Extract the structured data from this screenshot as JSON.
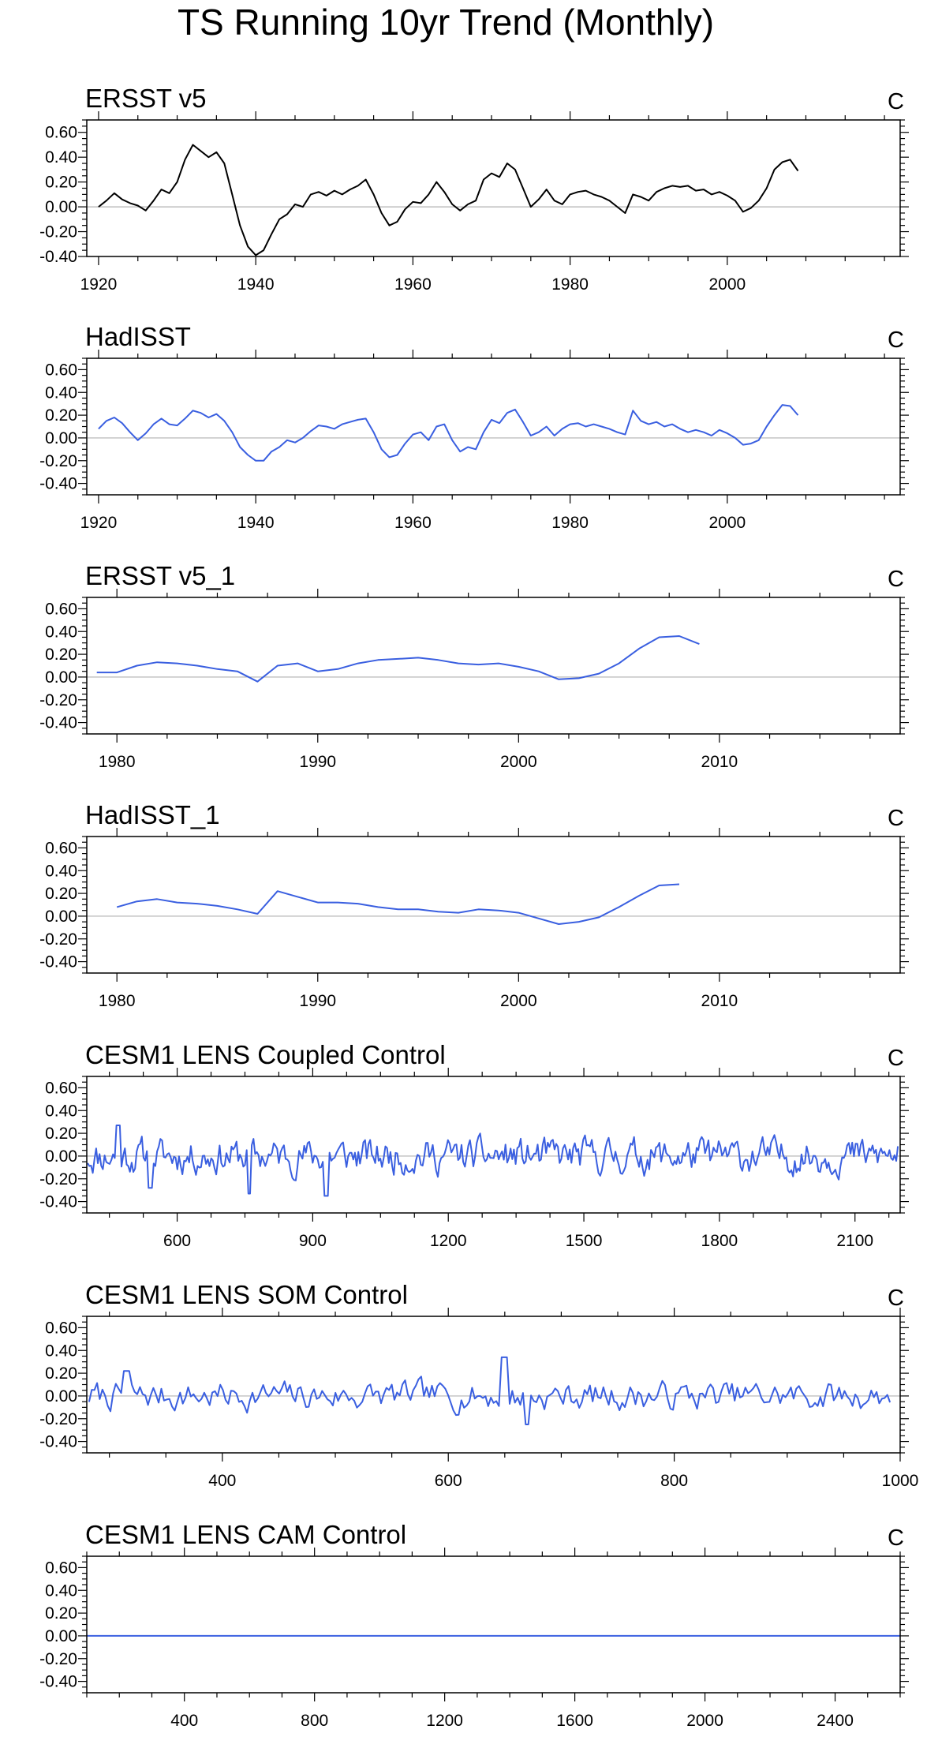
{
  "figure": {
    "title": "TS Running 10yr Trend (Monthly)"
  },
  "chart_data": [
    {
      "type": "line",
      "title": "ERSST v5",
      "units": "C",
      "color": "#000000",
      "xlim": [
        1918.5,
        2022
      ],
      "ylim": [
        -0.4,
        0.7
      ],
      "xticks": [
        1920,
        1940,
        1960,
        1980,
        2000
      ],
      "yticks": [
        -0.4,
        -0.2,
        0.0,
        0.2,
        0.4,
        0.6
      ],
      "ytick_labels": [
        "-0.40",
        "-0.20",
        "0.00",
        "0.20",
        "0.40",
        "0.60"
      ],
      "series": [
        {
          "name": "ERSST v5",
          "x": [
            1920,
            1921,
            1922,
            1923,
            1924,
            1925,
            1926,
            1927,
            1928,
            1929,
            1930,
            1931,
            1932,
            1933,
            1934,
            1935,
            1936,
            1937,
            1938,
            1939,
            1940,
            1941,
            1942,
            1943,
            1944,
            1945,
            1946,
            1947,
            1948,
            1949,
            1950,
            1951,
            1952,
            1953,
            1954,
            1955,
            1956,
            1957,
            1958,
            1959,
            1960,
            1961,
            1962,
            1963,
            1964,
            1965,
            1966,
            1967,
            1968,
            1969,
            1970,
            1971,
            1972,
            1973,
            1974,
            1975,
            1976,
            1977,
            1978,
            1979,
            1980,
            1981,
            1982,
            1983,
            1984,
            1985,
            1986,
            1987,
            1988,
            1989,
            1990,
            1991,
            1992,
            1993,
            1994,
            1995,
            1996,
            1997,
            1998,
            1999,
            2000,
            2001,
            2002,
            2003,
            2004,
            2005,
            2006,
            2007,
            2008,
            2009
          ],
          "values": [
            0.0,
            0.05,
            0.11,
            0.06,
            0.03,
            0.01,
            -0.03,
            0.05,
            0.14,
            0.11,
            0.2,
            0.38,
            0.5,
            0.45,
            0.4,
            0.44,
            0.35,
            0.1,
            -0.15,
            -0.32,
            -0.39,
            -0.35,
            -0.22,
            -0.1,
            -0.06,
            0.02,
            0.0,
            0.1,
            0.12,
            0.09,
            0.13,
            0.1,
            0.14,
            0.17,
            0.22,
            0.1,
            -0.05,
            -0.15,
            -0.12,
            -0.02,
            0.04,
            0.03,
            0.1,
            0.2,
            0.12,
            0.02,
            -0.03,
            0.02,
            0.05,
            0.22,
            0.27,
            0.24,
            0.35,
            0.3,
            0.15,
            0.0,
            0.06,
            0.14,
            0.05,
            0.02,
            0.1,
            0.12,
            0.13,
            0.1,
            0.08,
            0.05,
            0.0,
            -0.05,
            0.1,
            0.08,
            0.05,
            0.12,
            0.15,
            0.17,
            0.16,
            0.17,
            0.13,
            0.14,
            0.1,
            0.12,
            0.09,
            0.05,
            -0.04,
            -0.01,
            0.05,
            0.15,
            0.3,
            0.36,
            0.38,
            0.29
          ]
        }
      ]
    },
    {
      "type": "line",
      "title": "HadISST",
      "units": "C",
      "color": "#3a5fe0",
      "xlim": [
        1918.5,
        2022
      ],
      "ylim": [
        -0.5,
        0.7
      ],
      "xticks": [
        1920,
        1940,
        1960,
        1980,
        2000
      ],
      "yticks": [
        -0.4,
        -0.2,
        0.0,
        0.2,
        0.4,
        0.6
      ],
      "ytick_labels": [
        "-0.40",
        "-0.20",
        "0.00",
        "0.20",
        "0.40",
        "0.60"
      ],
      "series": [
        {
          "name": "HadISST",
          "x": [
            1920,
            1921,
            1922,
            1923,
            1924,
            1925,
            1926,
            1927,
            1928,
            1929,
            1930,
            1931,
            1932,
            1933,
            1934,
            1935,
            1936,
            1937,
            1938,
            1939,
            1940,
            1941,
            1942,
            1943,
            1944,
            1945,
            1946,
            1947,
            1948,
            1949,
            1950,
            1951,
            1952,
            1953,
            1954,
            1955,
            1956,
            1957,
            1958,
            1959,
            1960,
            1961,
            1962,
            1963,
            1964,
            1965,
            1966,
            1967,
            1968,
            1969,
            1970,
            1971,
            1972,
            1973,
            1974,
            1975,
            1976,
            1977,
            1978,
            1979,
            1980,
            1981,
            1982,
            1983,
            1984,
            1985,
            1986,
            1987,
            1988,
            1989,
            1990,
            1991,
            1992,
            1993,
            1994,
            1995,
            1996,
            1997,
            1998,
            1999,
            2000,
            2001,
            2002,
            2003,
            2004,
            2005,
            2006,
            2007,
            2008,
            2009
          ],
          "values": [
            0.08,
            0.15,
            0.18,
            0.13,
            0.05,
            -0.02,
            0.04,
            0.12,
            0.17,
            0.12,
            0.11,
            0.17,
            0.24,
            0.22,
            0.18,
            0.21,
            0.15,
            0.05,
            -0.08,
            -0.15,
            -0.2,
            -0.2,
            -0.12,
            -0.08,
            -0.02,
            -0.04,
            0.0,
            0.06,
            0.11,
            0.1,
            0.08,
            0.12,
            0.14,
            0.16,
            0.17,
            0.05,
            -0.1,
            -0.17,
            -0.15,
            -0.05,
            0.03,
            0.05,
            -0.02,
            0.1,
            0.12,
            -0.02,
            -0.12,
            -0.08,
            -0.1,
            0.05,
            0.16,
            0.13,
            0.22,
            0.25,
            0.14,
            0.02,
            0.05,
            0.1,
            0.02,
            0.08,
            0.12,
            0.13,
            0.1,
            0.12,
            0.1,
            0.08,
            0.05,
            0.03,
            0.24,
            0.15,
            0.12,
            0.14,
            0.1,
            0.12,
            0.08,
            0.05,
            0.07,
            0.05,
            0.02,
            0.07,
            0.04,
            0.0,
            -0.06,
            -0.05,
            -0.02,
            0.1,
            0.2,
            0.29,
            0.28,
            0.2
          ]
        }
      ]
    },
    {
      "type": "line",
      "title": "ERSST v5_1",
      "units": "C",
      "color": "#3a5fe0",
      "xlim": [
        1978.5,
        2019
      ],
      "ylim": [
        -0.5,
        0.7
      ],
      "xticks": [
        1980,
        1990,
        2000,
        2010
      ],
      "yticks": [
        -0.4,
        -0.2,
        0.0,
        0.2,
        0.4,
        0.6
      ],
      "ytick_labels": [
        "-0.40",
        "-0.20",
        "0.00",
        "0.20",
        "0.40",
        "0.60"
      ],
      "series": [
        {
          "name": "ERSST v5_1",
          "x": [
            1979,
            1980,
            1981,
            1982,
            1983,
            1984,
            1985,
            1986,
            1987,
            1988,
            1989,
            1990,
            1991,
            1992,
            1993,
            1994,
            1995,
            1996,
            1997,
            1998,
            1999,
            2000,
            2001,
            2002,
            2003,
            2004,
            2005,
            2006,
            2007,
            2008,
            2009
          ],
          "values": [
            0.04,
            0.04,
            0.1,
            0.13,
            0.12,
            0.1,
            0.07,
            0.05,
            -0.04,
            0.1,
            0.12,
            0.05,
            0.07,
            0.12,
            0.15,
            0.16,
            0.17,
            0.15,
            0.12,
            0.11,
            0.12,
            0.09,
            0.05,
            -0.02,
            -0.01,
            0.03,
            0.12,
            0.25,
            0.35,
            0.36,
            0.29
          ]
        }
      ]
    },
    {
      "type": "line",
      "title": "HadISST_1",
      "units": "C",
      "color": "#3a5fe0",
      "xlim": [
        1978.5,
        2019
      ],
      "ylim": [
        -0.5,
        0.7
      ],
      "xticks": [
        1980,
        1990,
        2000,
        2010
      ],
      "yticks": [
        -0.4,
        -0.2,
        0.0,
        0.2,
        0.4,
        0.6
      ],
      "ytick_labels": [
        "-0.40",
        "-0.20",
        "0.00",
        "0.20",
        "0.40",
        "0.60"
      ],
      "series": [
        {
          "name": "HadISST_1",
          "x": [
            1980,
            1981,
            1982,
            1983,
            1984,
            1985,
            1986,
            1987,
            1988,
            1989,
            1990,
            1991,
            1992,
            1993,
            1994,
            1995,
            1996,
            1997,
            1998,
            1999,
            2000,
            2001,
            2002,
            2003,
            2004,
            2005,
            2006,
            2007,
            2008
          ],
          "values": [
            0.08,
            0.13,
            0.15,
            0.12,
            0.11,
            0.09,
            0.06,
            0.02,
            0.22,
            0.17,
            0.12,
            0.12,
            0.11,
            0.08,
            0.06,
            0.06,
            0.04,
            0.03,
            0.06,
            0.05,
            0.03,
            -0.02,
            -0.07,
            -0.05,
            -0.01,
            0.08,
            0.18,
            0.27,
            0.28
          ]
        }
      ]
    },
    {
      "type": "line",
      "title": "CESM1 LENS Coupled Control",
      "units": "C",
      "color": "#3a5fe0",
      "xlim": [
        400,
        2200
      ],
      "ylim": [
        -0.5,
        0.7
      ],
      "xticks": [
        600,
        900,
        1200,
        1500,
        1800,
        2100
      ],
      "yticks": [
        -0.4,
        -0.2,
        0.0,
        0.2,
        0.4,
        0.6
      ],
      "ytick_labels": [
        "-0.40",
        "-0.20",
        "0.00",
        "0.20",
        "0.40",
        "0.60"
      ],
      "series": [
        {
          "name": "CESM1 LENS Coupled Control",
          "x_start": 402,
          "x_end": 2195,
          "n": 480,
          "amplitude": 0.12,
          "seed": 11,
          "extremes": [
            [
              540,
              -0.28
            ],
            [
              930,
              -0.35
            ],
            [
              760,
              -0.33
            ],
            [
              470,
              0.27
            ]
          ]
        }
      ]
    },
    {
      "type": "line",
      "title": "CESM1 LENS SOM Control",
      "units": "C",
      "color": "#3a5fe0",
      "xlim": [
        280,
        1000
      ],
      "ylim": [
        -0.5,
        0.7
      ],
      "xticks": [
        400,
        600,
        800,
        1000
      ],
      "yticks": [
        -0.4,
        -0.2,
        0.0,
        0.2,
        0.4,
        0.6
      ],
      "ytick_labels": [
        "-0.40",
        "-0.20",
        "0.00",
        "0.20",
        "0.40",
        "0.60"
      ],
      "series": [
        {
          "name": "CESM1 LENS SOM Control",
          "x_start": 282,
          "x_end": 991,
          "n": 300,
          "amplitude": 0.1,
          "seed": 7,
          "extremes": [
            [
              650,
              0.34
            ],
            [
              670,
              -0.25
            ],
            [
              315,
              0.22
            ]
          ]
        }
      ]
    },
    {
      "type": "line",
      "title": "CESM1 LENS CAM Control",
      "units": "C",
      "color": "#3a5fe0",
      "xlim": [
        100,
        2600
      ],
      "ylim": [
        -0.5,
        0.7
      ],
      "xticks": [
        400,
        800,
        1200,
        1600,
        2000,
        2400
      ],
      "yticks": [
        -0.4,
        -0.2,
        0.0,
        0.2,
        0.4,
        0.6
      ],
      "ytick_labels": [
        "-0.40",
        "-0.20",
        "0.00",
        "0.20",
        "0.40",
        "0.60"
      ],
      "series": [
        {
          "name": "CESM1 LENS CAM Control",
          "x": [
            100,
            2600
          ],
          "values": [
            0.0,
            0.0
          ]
        }
      ]
    }
  ]
}
